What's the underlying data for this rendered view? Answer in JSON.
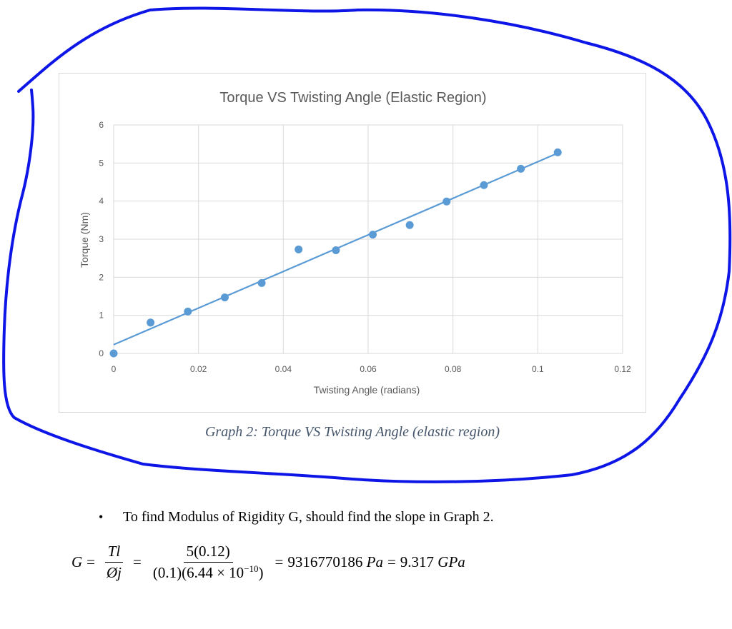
{
  "colors": {
    "annotation": "#0d16e6",
    "series": "#5b9bd5",
    "grid": "#d9d9d9",
    "text": "#595959",
    "caption": "#44546a"
  },
  "chart_data": {
    "type": "scatter",
    "title": "Torque VS Twisting Angle (Elastic Region)",
    "xlabel": "Twisting Angle (radians)",
    "ylabel": "Torque (Nm)",
    "xlim": [
      0,
      0.12
    ],
    "ylim": [
      0,
      6
    ],
    "x_ticks": [
      "0",
      "0.02",
      "0.04",
      "0.06",
      "0.08",
      "0.1",
      "0.12"
    ],
    "y_ticks": [
      "0",
      "1",
      "2",
      "3",
      "4",
      "5",
      "6"
    ],
    "grid": true,
    "legend": "none",
    "series": [
      {
        "points": [
          [
            0,
            0
          ],
          [
            0.0087,
            0.81
          ],
          [
            0.0175,
            1.1
          ],
          [
            0.0262,
            1.47
          ],
          [
            0.0349,
            1.85
          ],
          [
            0.0436,
            2.73
          ],
          [
            0.0524,
            2.71
          ],
          [
            0.0611,
            3.12
          ],
          [
            0.0698,
            3.37
          ],
          [
            0.0785,
            3.99
          ],
          [
            0.0873,
            4.42
          ],
          [
            0.096,
            4.85
          ],
          [
            0.1047,
            5.28
          ]
        ],
        "trendline": {
          "type": "linear",
          "from": [
            0,
            0.23
          ],
          "to": [
            0.1047,
            5.26
          ]
        }
      }
    ]
  },
  "caption": "Graph  2: Torque VS Twisting Angle (elastic region)",
  "bullet": {
    "symbol": "•",
    "text": "To find Modulus of Rigidity G, should find the slope in Graph 2."
  },
  "equation": {
    "lhs": "G",
    "eq1": "=",
    "frac1_num": "Tl",
    "frac1_den": "Øj",
    "eq2": "=",
    "frac2_num": "5(0.12)",
    "frac2_den_main": "(0.1)(6.44 × 10",
    "frac2_den_exp": "−10",
    "frac2_den_close": ")",
    "eq3": "=",
    "value": "9316770186",
    "unit1": "Pa",
    "eq4": "=",
    "value2": "9.317",
    "unit2": "GPa"
  }
}
